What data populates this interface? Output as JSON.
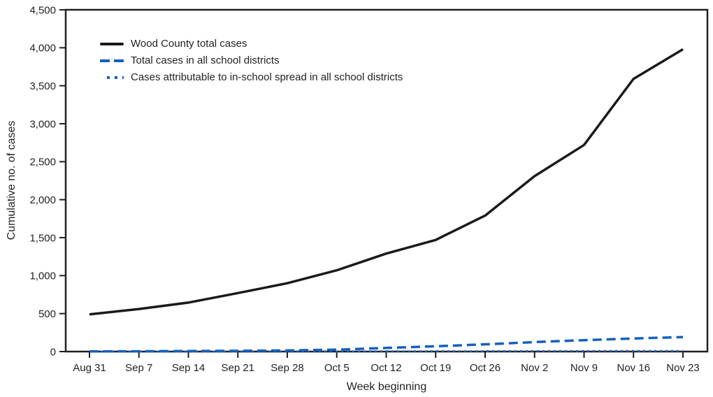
{
  "chart_data": {
    "type": "line",
    "title": "",
    "xlabel": "Week beginning",
    "ylabel": "Cumulative no. of cases",
    "ylim": [
      0,
      4500
    ],
    "grid": false,
    "legend_position": "top-left-inside",
    "axis_color": "#231f20",
    "y_tick_values": [
      0,
      500,
      1000,
      1500,
      2000,
      2500,
      3000,
      3500,
      4000,
      4500
    ],
    "y_tick_labels": [
      "0",
      "500",
      "1,000",
      "1,500",
      "2,000",
      "2,500",
      "3,000",
      "3,500",
      "4,000",
      "4,500"
    ],
    "categories": [
      "Aug 31",
      "Sep 7",
      "Sep 14",
      "Sep 21",
      "Sep 28",
      "Oct 5",
      "Oct 12",
      "Oct 19",
      "Oct 26",
      "Nov 2",
      "Nov 9",
      "Nov 16",
      "Nov 23"
    ],
    "series": [
      {
        "id": "wood-county-total-cases",
        "name": "Wood County total cases",
        "style": "solid",
        "color": "#1a1a1a",
        "values": [
          490,
          560,
          645,
          770,
          900,
          1070,
          1290,
          1470,
          1790,
          2310,
          2720,
          3590,
          3980
        ]
      },
      {
        "id": "total-cases-all-school-districts",
        "name": "Total cases in all school districts",
        "style": "dashed",
        "color": "#1560bd",
        "values": [
          2,
          4,
          7,
          10,
          15,
          25,
          48,
          70,
          95,
          125,
          150,
          172,
          191
        ]
      },
      {
        "id": "in-school-spread-cases",
        "name": "Cases attributable to in-school spread in all school districts",
        "style": "dotted",
        "color": "#1560bd",
        "values": [
          0,
          0,
          0,
          0,
          1,
          1,
          2,
          3,
          4,
          5,
          6,
          7,
          7
        ]
      }
    ]
  }
}
